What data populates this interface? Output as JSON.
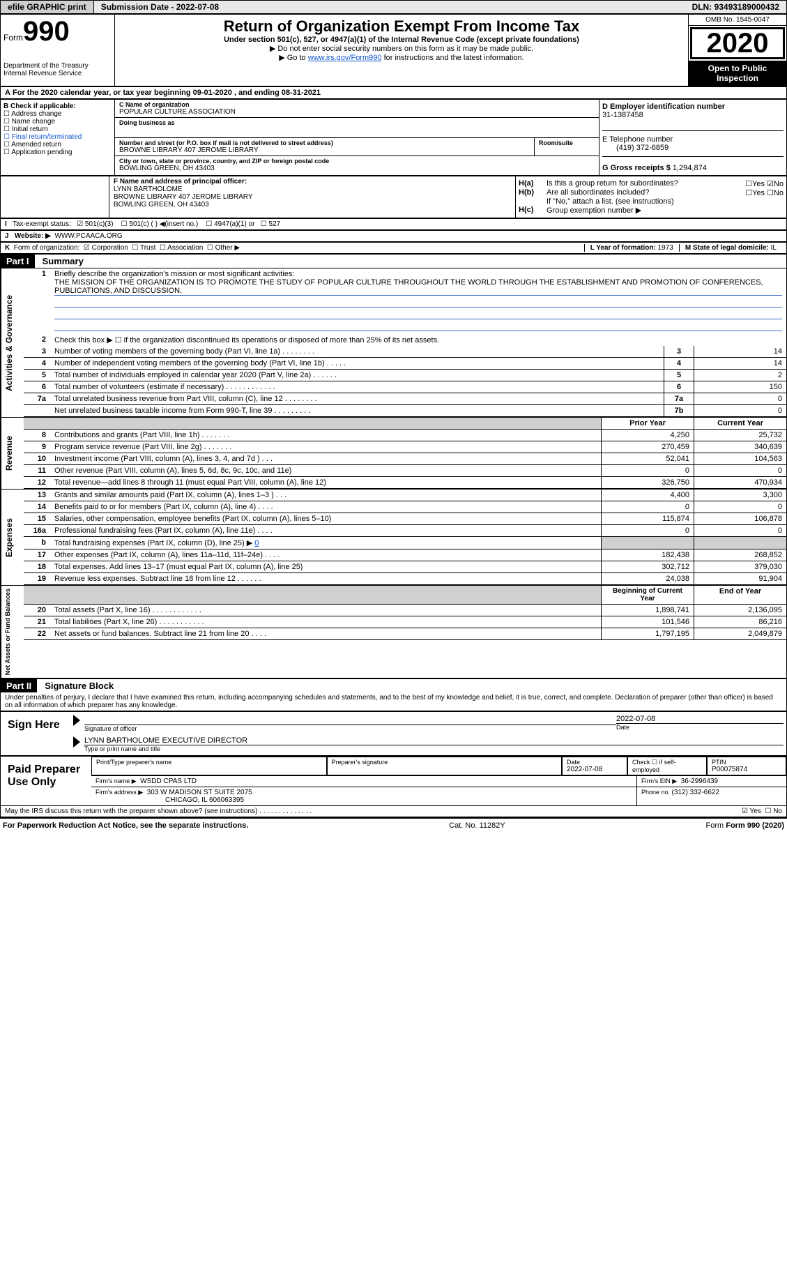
{
  "topbar": {
    "efile": "efile GRAPHIC print",
    "submission_label": "Submission Date - ",
    "submission_date": "2022-07-08",
    "dln_label": "DLN: ",
    "dln": "93493189000432"
  },
  "header": {
    "form_label": "Form",
    "form_number": "990",
    "department": "Department of the Treasury",
    "irs": "Internal Revenue Service",
    "title": "Return of Organization Exempt From Income Tax",
    "subtitle": "Under section 501(c), 527, or 4947(a)(1) of the Internal Revenue Code (except private foundations)",
    "warn1": "▶ Do not enter social security numbers on this form as it may be made public.",
    "warn2_prefix": "▶ Go to ",
    "warn2_link": "www.irs.gov/Form990",
    "warn2_suffix": " for instructions and the latest information.",
    "omb": "OMB No. 1545-0047",
    "year": "2020",
    "open": "Open to Public Inspection"
  },
  "lineA": {
    "prefix": "A",
    "text": "For the 2020 calendar year, or tax year beginning 09-01-2020    , and ending 08-31-2021"
  },
  "sectionB": {
    "label": "B Check if applicable:",
    "opts": [
      "☐ Address change",
      "☐ Name change",
      "☐ Initial return",
      "☐ Final return/terminated",
      "☐ Amended return",
      "☐ Application pending"
    ],
    "c_name_label": "C Name of organization",
    "c_name": "POPULAR CULTURE ASSOCIATION",
    "dba_label": "Doing business as",
    "addr_label": "Number and street (or P.O. box if mail is not delivered to street address)",
    "room_label": "Room/suite",
    "addr": "BROWNE LIBRARY 407 JEROME LIBRARY",
    "city_label": "City or town, state or province, country, and ZIP or foreign postal code",
    "city": "BOWLING GREEN, OH   43403",
    "d_label": "D Employer identification number",
    "d_ein": "31-1387458",
    "e_label": "E Telephone number",
    "e_phone": "(419) 372-6859",
    "g_label": "G Gross receipts $ ",
    "g_val": "1,294,874"
  },
  "sectionF": {
    "f_label": "F Name and address of principal officer:",
    "f_name": "LYNN BARTHOLOME",
    "f_addr1": "BROWNE LIBRARY 407 JEROME LIBRARY",
    "f_addr2": "BOWLING GREEN, OH   43403",
    "ha_label": "H(a)",
    "ha_text": "Is this a group return for subordinates?",
    "ha_yes": "☐Yes",
    "ha_no": "☑No",
    "hb_label": "H(b)",
    "hb_text": "Are all subordinates included?",
    "hb_yn": "☐Yes  ☐No",
    "hb_note": "If \"No,\" attach a list. (see instructions)",
    "hc_label": "H(c)",
    "hc_text": "Group exemption number ▶"
  },
  "lineI": {
    "label": "I",
    "text": "Tax-exempt status:",
    "o1": "☑ 501(c)(3)",
    "o2": "☐ 501(c) (  ) ◀(insert no.)",
    "o3": "☐ 4947(a)(1) or",
    "o4": "☐ 527"
  },
  "lineJ": {
    "label": "J",
    "text": "Website: ▶",
    "site": "WWW.PCAACA.ORG"
  },
  "lineK": {
    "label": "K",
    "text": "Form of organization:",
    "o1": "☑ Corporation",
    "o2": "☐ Trust",
    "o3": "☐ Association",
    "o4": "☐ Other ▶",
    "l_label": "L Year of formation: ",
    "l_val": "1973",
    "m_label": "M State of legal domicile: ",
    "m_val": "IL"
  },
  "part1": {
    "header": "Part I",
    "title": "Summary",
    "side_gov": "Activities & Governance",
    "side_rev": "Revenue",
    "side_exp": "Expenses",
    "side_net": "Net Assets or Fund Balances",
    "l1_label": "1",
    "l1_text": "Briefly describe the organization's mission or most significant activities:",
    "l1_mission": "THE MISSION OF THE ORGANIZATION IS TO PROMOTE THE STUDY OF POPULAR CULTURE THROUGHOUT THE WORLD THROUGH THE ESTABLISHMENT AND PROMOTION OF CONFERENCES, PUBLICATIONS, AND DISCUSSION.",
    "l2": "Check this box ▶ ☐  if the organization discontinued its operations or disposed of more than 25% of its net assets.",
    "govRows": [
      {
        "n": "3",
        "t": "Number of voting members of the governing body (Part VI, line 1a)  .    .    .    .    .    .    .    .",
        "k": "3",
        "v": "14"
      },
      {
        "n": "4",
        "t": "Number of independent voting members of the governing body (Part VI, line 1b)  .    .    .    .    .",
        "k": "4",
        "v": "14"
      },
      {
        "n": "5",
        "t": "Total number of individuals employed in calendar year 2020 (Part V, line 2a)  .    .    .    .    .    .",
        "k": "5",
        "v": "2"
      },
      {
        "n": "6",
        "t": "Total number of volunteers (estimate if necessary)  .    .    .    .    .    .    .    .    .    .    .    .",
        "k": "6",
        "v": "150"
      },
      {
        "n": "7a",
        "t": "Total unrelated business revenue from Part VIII, column (C), line 12  .    .    .    .    .    .    .    .",
        "k": "7a",
        "v": "0"
      },
      {
        "n": "",
        "t": "Net unrelated business taxable income from Form 990-T, line 39  .    .    .    .    .    .    .    .    .",
        "k": "7b",
        "v": "0"
      }
    ],
    "twoColHeader": {
      "prior": "Prior Year",
      "current": "Current Year"
    },
    "revRows": [
      {
        "n": "8",
        "t": "Contributions and grants (Part VIII, line 1h)  .    .    .    .    .    .    .",
        "p": "4,250",
        "c": "25,732"
      },
      {
        "n": "9",
        "t": "Program service revenue (Part VIII, line 2g)  .    .    .    .    .    .    .",
        "p": "270,459",
        "c": "340,639"
      },
      {
        "n": "10",
        "t": "Investment income (Part VIII, column (A), lines 3, 4, and 7d )  .    .    .",
        "p": "52,041",
        "c": "104,563"
      },
      {
        "n": "11",
        "t": "Other revenue (Part VIII, column (A), lines 5, 6d, 8c, 9c, 10c, and 11e)",
        "p": "0",
        "c": "0"
      },
      {
        "n": "12",
        "t": "Total revenue—add lines 8 through 11 (must equal Part VIII, column (A), line 12)",
        "p": "326,750",
        "c": "470,934"
      }
    ],
    "expRows": [
      {
        "n": "13",
        "t": "Grants and similar amounts paid (Part IX, column (A), lines 1–3 )  .    .    .",
        "p": "4,400",
        "c": "3,300"
      },
      {
        "n": "14",
        "t": "Benefits paid to or for members (Part IX, column (A), line 4)  .    .    .    .",
        "p": "0",
        "c": "0"
      },
      {
        "n": "15",
        "t": "Salaries, other compensation, employee benefits (Part IX, column (A), lines 5–10)",
        "p": "115,874",
        "c": "106,878"
      },
      {
        "n": "16a",
        "t": "Professional fundraising fees (Part IX, column (A), line 11e)  .    .    .    .",
        "p": "0",
        "c": "0"
      }
    ],
    "exp16b": {
      "n": "b",
      "t": "Total fundraising expenses (Part IX, column (D), line 25) ▶",
      "v": "0"
    },
    "expRows2": [
      {
        "n": "17",
        "t": "Other expenses (Part IX, column (A), lines 11a–11d, 11f–24e)  .    .    .    .",
        "p": "182,438",
        "c": "268,852"
      },
      {
        "n": "18",
        "t": "Total expenses. Add lines 13–17 (must equal Part IX, column (A), line 25)",
        "p": "302,712",
        "c": "379,030"
      },
      {
        "n": "19",
        "t": "Revenue less expenses. Subtract line 18 from line 12  .    .    .    .    .    .",
        "p": "24,038",
        "c": "91,904"
      }
    ],
    "netHeader": {
      "begin": "Beginning of Current Year",
      "end": "End of Year"
    },
    "netRows": [
      {
        "n": "20",
        "t": "Total assets (Part X, line 16)  .    .    .    .    .    .    .    .    .    .    .    .",
        "p": "1,898,741",
        "c": "2,136,095"
      },
      {
        "n": "21",
        "t": "Total liabilities (Part X, line 26)  .    .    .    .    .    .    .    .    .    .    .",
        "p": "101,546",
        "c": "86,216"
      },
      {
        "n": "22",
        "t": "Net assets or fund balances. Subtract line 21 from line 20  .    .    .    .",
        "p": "1,797,195",
        "c": "2,049,879"
      }
    ]
  },
  "part2": {
    "header": "Part II",
    "title": "Signature Block",
    "declaration": "Under penalties of perjury, I declare that I have examined this return, including accompanying schedules and statements, and to the best of my knowledge and belief, it is true, correct, and complete. Declaration of preparer (other than officer) is based on all information of which preparer has any knowledge.",
    "sign_here": "Sign Here",
    "sig_officer": "Signature of officer",
    "sig_date": "2022-07-08",
    "sig_date_lbl": "Date",
    "officer_name": "LYNN BARTHOLOME  EXECUTIVE DIRECTOR",
    "officer_name_lbl": "Type or print name and title",
    "paid_prep": "Paid Preparer Use Only",
    "prep_name_lbl": "Print/Type preparer's name",
    "prep_sig_lbl": "Preparer's signature",
    "prep_date_lbl": "Date",
    "prep_date": "2022-07-08",
    "prep_self_lbl": "Check ☐ if self-employed",
    "ptin_lbl": "PTIN",
    "ptin": "P00075874",
    "firm_name_lbl": "Firm's name    ▶",
    "firm_name": "WSDD CPAS LTD",
    "firm_ein_lbl": "Firm's EIN ▶",
    "firm_ein": "36-2996439",
    "firm_addr_lbl": "Firm's address ▶",
    "firm_addr1": "303 W MADISON ST SUITE 2075",
    "firm_addr2": "CHICAGO, IL   606063395",
    "phone_lbl": "Phone no. ",
    "phone": "(312) 332-6622",
    "discuss": "May the IRS discuss this return with the preparer shown above? (see instructions)  .    .    .    .    .    .    .    .    .    .    .    .    .    .",
    "discuss_yes": "☑ Yes",
    "discuss_no": "☐ No"
  },
  "footer": {
    "paperwork": "For Paperwork Reduction Act Notice, see the separate instructions.",
    "cat": "Cat. No. 11282Y",
    "form": "Form 990 (2020)"
  }
}
